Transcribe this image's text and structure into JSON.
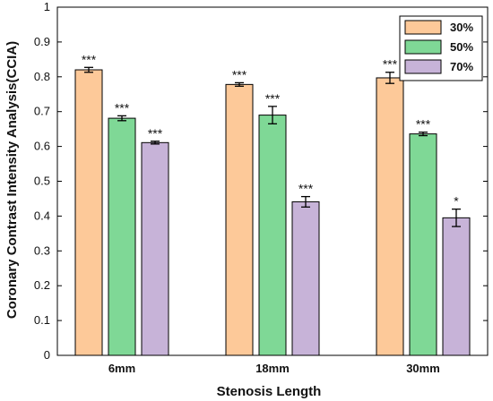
{
  "chart_data": {
    "type": "bar",
    "title": "",
    "xlabel": "Stenosis Length",
    "ylabel": "Coronary Contrast Intensity Analysis(CCIA)",
    "categories": [
      "6mm",
      "18mm",
      "30mm"
    ],
    "ylim": [
      0,
      1
    ],
    "yticks": [
      "0",
      "0.1",
      "0.2",
      "0.3",
      "0.4",
      "0.5",
      "0.6",
      "0.7",
      "0.8",
      "0.9",
      "1"
    ],
    "grid": false,
    "legend_position": "top-right",
    "series": [
      {
        "name": "30%",
        "color": "#fdc999",
        "values": [
          0.82,
          0.778,
          0.797
        ],
        "errors": [
          0.007,
          0.005,
          0.016
        ],
        "significance": [
          "***",
          "***",
          "***"
        ]
      },
      {
        "name": "50%",
        "color": "#7fd896",
        "values": [
          0.681,
          0.69,
          0.636
        ],
        "errors": [
          0.007,
          0.025,
          0.005
        ],
        "significance": [
          "***",
          "***",
          "***"
        ]
      },
      {
        "name": "70%",
        "color": "#c7b3d8",
        "values": [
          0.611,
          0.441,
          0.395
        ],
        "errors": [
          0.004,
          0.015,
          0.025
        ],
        "significance": [
          "***",
          "***",
          "*"
        ]
      }
    ]
  }
}
